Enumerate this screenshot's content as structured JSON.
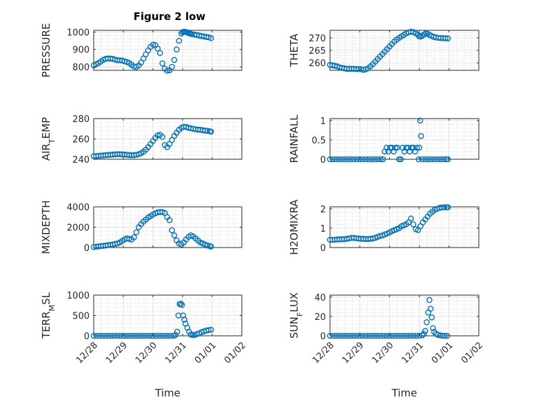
{
  "figure": {
    "title": "Figure 2 low",
    "marker_color": "#0072BD"
  },
  "chart_data": [
    {
      "type": "scatter",
      "panel": "PRESSURE",
      "title": "Figure 2 low",
      "ylabel": "PRESSURE",
      "xlabel": "",
      "xlim": [
        0,
        5
      ],
      "ylim": [
        780,
        1010
      ],
      "yticks": [
        800,
        900,
        1000
      ],
      "xtick_labels": [],
      "grid": true,
      "x": [
        0.0,
        0.08,
        0.16,
        0.24,
        0.32,
        0.4,
        0.48,
        0.56,
        0.64,
        0.72,
        0.8,
        0.88,
        0.96,
        1.04,
        1.12,
        1.2,
        1.28,
        1.36,
        1.44,
        1.52,
        1.6,
        1.68,
        1.76,
        1.84,
        1.92,
        2.0,
        2.08,
        2.16,
        2.24,
        2.32,
        2.4,
        2.48,
        2.56,
        2.64,
        2.72,
        2.8,
        2.88,
        2.96,
        3.0,
        3.04,
        3.08,
        3.12,
        3.16,
        3.2,
        3.24,
        3.28,
        3.32,
        3.4,
        3.48,
        3.56,
        3.64,
        3.72,
        3.8,
        3.88,
        3.96
      ],
      "y": [
        808,
        815,
        822,
        830,
        840,
        846,
        848,
        848,
        846,
        842,
        838,
        838,
        836,
        832,
        828,
        822,
        812,
        802,
        800,
        808,
        825,
        848,
        872,
        895,
        915,
        928,
        925,
        905,
        880,
        820,
        790,
        778,
        780,
        800,
        840,
        900,
        950,
        992,
        1000,
        1002,
        1002,
        1000,
        998,
        995,
        993,
        990,
        988,
        986,
        983,
        980,
        977,
        975,
        972,
        970,
        965
      ]
    },
    {
      "type": "scatter",
      "panel": "THETA",
      "ylabel": "THETA",
      "xlabel": "",
      "xlim": [
        0,
        5
      ],
      "ylim": [
        257,
        273
      ],
      "yticks": [
        260,
        265,
        270
      ],
      "xtick_labels": [],
      "grid": true,
      "x": [
        0.0,
        0.08,
        0.16,
        0.24,
        0.32,
        0.4,
        0.48,
        0.56,
        0.64,
        0.72,
        0.8,
        0.88,
        0.96,
        1.04,
        1.12,
        1.2,
        1.28,
        1.36,
        1.44,
        1.52,
        1.6,
        1.68,
        1.76,
        1.84,
        1.92,
        2.0,
        2.08,
        2.16,
        2.24,
        2.32,
        2.4,
        2.48,
        2.56,
        2.64,
        2.72,
        2.8,
        2.88,
        2.96,
        3.0,
        3.04,
        3.1,
        3.16,
        3.22,
        3.28,
        3.34,
        3.4,
        3.48,
        3.56,
        3.64,
        3.72,
        3.8,
        3.88,
        3.96
      ],
      "y": [
        259.2,
        259.0,
        258.8,
        258.6,
        258.2,
        258.0,
        257.8,
        257.6,
        257.6,
        257.6,
        257.6,
        257.5,
        257.5,
        257.5,
        257.2,
        257.4,
        257.8,
        258.6,
        259.5,
        260.5,
        261.5,
        262.5,
        263.5,
        264.5,
        265.5,
        266.5,
        267.5,
        268.5,
        269.3,
        270.0,
        270.6,
        271.2,
        271.8,
        272.2,
        272.5,
        272.3,
        271.8,
        271.2,
        270.6,
        270.5,
        270.8,
        271.4,
        271.8,
        271.6,
        271.2,
        270.8,
        270.4,
        270.2,
        270.0,
        269.9,
        269.9,
        269.8,
        269.8
      ]
    },
    {
      "type": "scatter",
      "panel": "AIR_TEMP",
      "ylabel": "AIR_TEMP",
      "xlabel": "",
      "xlim": [
        0,
        5
      ],
      "ylim": [
        240,
        280
      ],
      "yticks": [
        240,
        260,
        280
      ],
      "xtick_labels": [],
      "grid": true,
      "x": [
        0.0,
        0.08,
        0.16,
        0.24,
        0.32,
        0.4,
        0.48,
        0.56,
        0.64,
        0.72,
        0.8,
        0.88,
        0.96,
        1.04,
        1.12,
        1.2,
        1.28,
        1.36,
        1.44,
        1.52,
        1.6,
        1.68,
        1.76,
        1.84,
        1.92,
        2.0,
        2.08,
        2.16,
        2.24,
        2.32,
        2.4,
        2.48,
        2.56,
        2.64,
        2.72,
        2.8,
        2.88,
        2.96,
        3.04,
        3.12,
        3.2,
        3.28,
        3.36,
        3.44,
        3.52,
        3.6,
        3.68,
        3.76,
        3.84,
        3.92,
        3.96
      ],
      "y": [
        243,
        243.2,
        243.4,
        243.6,
        243.8,
        244,
        244.2,
        244.4,
        244.6,
        244.8,
        245,
        245,
        244.8,
        244.6,
        244.4,
        244.2,
        244,
        244,
        244.4,
        245,
        246,
        247.5,
        249.5,
        252,
        255,
        258,
        261,
        263.5,
        264,
        262,
        254,
        252,
        255,
        259,
        263,
        266,
        269,
        271,
        272,
        271.8,
        271,
        270.5,
        270,
        269.5,
        269.2,
        269,
        268.6,
        268.2,
        268,
        267.5,
        267.2
      ]
    },
    {
      "type": "scatter",
      "panel": "RAINFALL",
      "ylabel": "RAINFALL",
      "xlabel": "",
      "xlim": [
        0,
        5
      ],
      "ylim": [
        0,
        1.05
      ],
      "yticks": [
        0,
        0.5,
        1
      ],
      "ytick_labels": [
        "0",
        "0.5",
        "1"
      ],
      "xtick_labels": [],
      "grid": true,
      "x": [
        0.0,
        0.1,
        0.2,
        0.3,
        0.4,
        0.5,
        0.6,
        0.7,
        0.8,
        0.9,
        1.0,
        1.1,
        1.2,
        1.3,
        1.4,
        1.5,
        1.6,
        1.7,
        1.78,
        1.84,
        1.9,
        1.96,
        2.02,
        2.08,
        2.14,
        2.2,
        2.26,
        2.32,
        2.38,
        2.44,
        2.5,
        2.56,
        2.62,
        2.68,
        2.74,
        2.8,
        2.86,
        2.92,
        2.98,
        3.0,
        3.03,
        3.06,
        3.1,
        3.2,
        3.3,
        3.4,
        3.5,
        3.6,
        3.7,
        3.8,
        3.9,
        3.96
      ],
      "y": [
        0,
        0,
        0,
        0,
        0,
        0,
        0,
        0,
        0,
        0,
        0,
        0,
        0,
        0,
        0,
        0,
        0,
        0,
        0,
        0.2,
        0.3,
        0.2,
        0.3,
        0.3,
        0.2,
        0.3,
        0.3,
        0,
        0,
        0.3,
        0.2,
        0.3,
        0.3,
        0.2,
        0.3,
        0.3,
        0.2,
        0.3,
        0,
        0.3,
        1.0,
        0.6,
        0,
        0,
        0,
        0,
        0,
        0,
        0,
        0,
        0,
        0
      ]
    },
    {
      "type": "scatter",
      "panel": "MIXDEPTH",
      "ylabel": "MIXDEPTH",
      "xlabel": "",
      "xlim": [
        0,
        5
      ],
      "ylim": [
        0,
        4000
      ],
      "yticks": [
        0,
        2000,
        4000
      ],
      "xtick_labels": [],
      "grid": true,
      "x": [
        0.0,
        0.08,
        0.16,
        0.24,
        0.32,
        0.4,
        0.48,
        0.56,
        0.64,
        0.72,
        0.8,
        0.88,
        0.96,
        1.04,
        1.12,
        1.2,
        1.28,
        1.36,
        1.44,
        1.52,
        1.6,
        1.68,
        1.76,
        1.84,
        1.92,
        2.0,
        2.08,
        2.16,
        2.24,
        2.32,
        2.4,
        2.48,
        2.56,
        2.64,
        2.72,
        2.8,
        2.88,
        2.96,
        3.04,
        3.12,
        3.2,
        3.28,
        3.36,
        3.44,
        3.52,
        3.6,
        3.68,
        3.76,
        3.84,
        3.92,
        3.96
      ],
      "y": [
        50,
        80,
        110,
        140,
        170,
        200,
        230,
        260,
        300,
        350,
        400,
        500,
        650,
        800,
        900,
        850,
        780,
        1000,
        1500,
        2000,
        2300,
        2550,
        2750,
        2950,
        3100,
        3250,
        3380,
        3450,
        3500,
        3500,
        3400,
        3000,
        2700,
        1700,
        1200,
        700,
        400,
        300,
        500,
        800,
        1050,
        1200,
        1100,
        900,
        700,
        500,
        400,
        300,
        200,
        150,
        100
      ]
    },
    {
      "type": "scatter",
      "panel": "H2OMIXRA",
      "ylabel": "H2OMIXRA",
      "xlabel": "",
      "xlim": [
        0,
        5
      ],
      "ylim": [
        0,
        2.1
      ],
      "yticks": [
        0,
        1,
        2
      ],
      "xtick_labels": [],
      "grid": true,
      "x": [
        0.0,
        0.08,
        0.16,
        0.24,
        0.32,
        0.4,
        0.48,
        0.56,
        0.64,
        0.72,
        0.8,
        0.88,
        0.96,
        1.04,
        1.12,
        1.2,
        1.28,
        1.36,
        1.44,
        1.52,
        1.6,
        1.68,
        1.76,
        1.84,
        1.92,
        2.0,
        2.08,
        2.16,
        2.24,
        2.32,
        2.4,
        2.48,
        2.56,
        2.64,
        2.72,
        2.8,
        2.88,
        2.96,
        3.04,
        3.12,
        3.2,
        3.28,
        3.36,
        3.44,
        3.52,
        3.6,
        3.68,
        3.76,
        3.84,
        3.92,
        3.96
      ],
      "y": [
        0.4,
        0.4,
        0.4,
        0.42,
        0.42,
        0.43,
        0.43,
        0.45,
        0.47,
        0.5,
        0.5,
        0.48,
        0.47,
        0.45,
        0.45,
        0.44,
        0.44,
        0.45,
        0.47,
        0.5,
        0.55,
        0.6,
        0.62,
        0.68,
        0.72,
        0.78,
        0.85,
        0.9,
        0.95,
        1.0,
        1.1,
        1.15,
        1.2,
        1.3,
        1.5,
        1.2,
        0.95,
        0.9,
        1.1,
        1.3,
        1.45,
        1.6,
        1.75,
        1.85,
        1.95,
        2.0,
        2.05,
        2.07,
        2.08,
        2.08,
        2.08
      ]
    },
    {
      "type": "scatter",
      "panel": "TERR_MSL",
      "ylabel": "TERR_MSL",
      "xlabel": "Time",
      "xlim": [
        0,
        5
      ],
      "ylim": [
        0,
        1000
      ],
      "yticks": [
        0,
        500,
        1000
      ],
      "xtick_labels": [
        "12/28",
        "12/29",
        "12/30",
        "12/31",
        "01/01",
        "01/02"
      ],
      "grid": true,
      "x": [
        0.0,
        0.1,
        0.2,
        0.3,
        0.4,
        0.5,
        0.6,
        0.7,
        0.8,
        0.9,
        1.0,
        1.1,
        1.2,
        1.3,
        1.4,
        1.5,
        1.6,
        1.7,
        1.8,
        1.9,
        2.0,
        2.1,
        2.2,
        2.3,
        2.4,
        2.5,
        2.6,
        2.7,
        2.76,
        2.82,
        2.86,
        2.9,
        2.94,
        2.98,
        3.02,
        3.06,
        3.1,
        3.16,
        3.22,
        3.28,
        3.34,
        3.4,
        3.48,
        3.56,
        3.64,
        3.72,
        3.8,
        3.88,
        3.96
      ],
      "y": [
        0,
        0,
        0,
        0,
        0,
        0,
        0,
        0,
        0,
        0,
        0,
        0,
        0,
        0,
        0,
        0,
        0,
        0,
        0,
        0,
        0,
        0,
        0,
        0,
        0,
        0,
        0,
        0,
        20,
        100,
        500,
        780,
        790,
        760,
        500,
        400,
        300,
        200,
        100,
        30,
        20,
        20,
        40,
        60,
        90,
        110,
        130,
        140,
        150
      ]
    },
    {
      "type": "scatter",
      "panel": "SUN_FLUX",
      "ylabel": "SUN_FLUX",
      "xlabel": "Time",
      "xlim": [
        0,
        5
      ],
      "ylim": [
        0,
        42
      ],
      "yticks": [
        0,
        20,
        40
      ],
      "xtick_labels": [
        "12/28",
        "12/29",
        "12/30",
        "12/31",
        "01/01",
        "01/02"
      ],
      "grid": true,
      "x": [
        0.0,
        0.1,
        0.2,
        0.3,
        0.4,
        0.5,
        0.6,
        0.7,
        0.8,
        0.9,
        1.0,
        1.1,
        1.2,
        1.3,
        1.4,
        1.5,
        1.6,
        1.7,
        1.8,
        1.9,
        2.0,
        2.1,
        2.2,
        2.3,
        2.4,
        2.5,
        2.6,
        2.7,
        2.8,
        2.9,
        3.0,
        3.1,
        3.15,
        3.2,
        3.25,
        3.3,
        3.34,
        3.38,
        3.42,
        3.46,
        3.5,
        3.56,
        3.62,
        3.7,
        3.78,
        3.86,
        3.94
      ],
      "y": [
        0,
        0,
        0,
        0,
        0,
        0,
        0,
        0,
        0,
        0,
        0,
        0,
        0,
        0,
        0,
        0,
        0,
        0,
        0,
        0,
        0,
        0,
        0,
        0,
        0,
        0,
        0,
        0,
        0,
        0,
        0,
        0.5,
        2,
        5,
        14,
        24,
        37,
        28,
        19,
        8,
        4,
        2,
        1,
        0.5,
        0,
        0,
        0
      ]
    }
  ]
}
